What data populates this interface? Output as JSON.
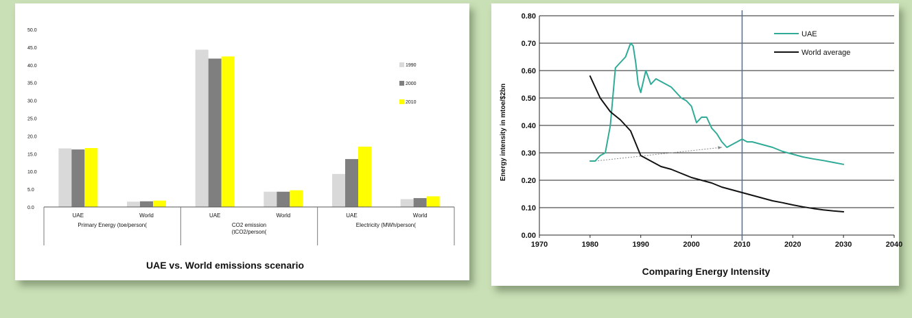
{
  "chart_data": [
    {
      "type": "bar",
      "title": "UAE vs. World emissions scenario",
      "group_labels": [
        "Primary Energy (toe/person(",
        "CO2 emission (tCO2/person(",
        "Electricity (MWh/person("
      ],
      "categories": [
        "UAE",
        "World",
        "UAE",
        "World",
        "UAE",
        "World"
      ],
      "series": [
        {
          "name": "1990",
          "color": "#d9d9d9",
          "values": [
            16.5,
            1.5,
            44.3,
            4.3,
            9.3,
            2.2
          ]
        },
        {
          "name": "2000",
          "color": "#7f7f7f",
          "values": [
            16.2,
            1.6,
            41.8,
            4.3,
            13.5,
            2.5
          ]
        },
        {
          "name": "2010",
          "color": "#ffff00",
          "values": [
            16.6,
            1.8,
            42.4,
            4.7,
            17.0,
            3.0
          ]
        }
      ],
      "ylim": [
        0,
        50
      ],
      "yticks": [
        "0.0",
        "5.0",
        "10.0",
        "15.0",
        "20.0",
        "25.0",
        "30.0",
        "35.0",
        "40.0",
        "45.0",
        "50.0"
      ],
      "legend_position": "right"
    },
    {
      "type": "line",
      "title": "Comparing Energy Intensity",
      "ylabel": "Energy intensity in mtoe/$2bn",
      "xlim": [
        1970,
        2040
      ],
      "ylim": [
        0,
        0.8
      ],
      "xticks": [
        "1970",
        "1980",
        "1990",
        "2000",
        "2010",
        "2020",
        "2030",
        "2040"
      ],
      "yticks": [
        "0.00",
        "0.10",
        "0.20",
        "0.30",
        "0.40",
        "0.50",
        "0.60",
        "0.70",
        "0.80"
      ],
      "reference_line_x": 2010,
      "series": [
        {
          "name": "UAE",
          "color": "#2eaa97",
          "x": [
            1980,
            1981,
            1982,
            1983,
            1984,
            1985,
            1986,
            1987,
            1988,
            1988.5,
            1989,
            1989.5,
            1990,
            1991,
            1992,
            1993,
            1994,
            1995,
            1996,
            1997,
            1998,
            1999,
            2000,
            2001,
            2002,
            2003,
            2004,
            2005,
            2006,
            2007,
            2008,
            2009,
            2010,
            2011,
            2012,
            2013,
            2014,
            2016,
            2018,
            2020,
            2022,
            2024,
            2026,
            2028,
            2030
          ],
          "y": [
            0.27,
            0.27,
            0.29,
            0.3,
            0.4,
            0.61,
            0.63,
            0.65,
            0.7,
            0.69,
            0.63,
            0.55,
            0.52,
            0.6,
            0.55,
            0.57,
            0.56,
            0.55,
            0.54,
            0.52,
            0.5,
            0.49,
            0.47,
            0.41,
            0.43,
            0.43,
            0.39,
            0.37,
            0.34,
            0.32,
            0.33,
            0.34,
            0.35,
            0.34,
            0.34,
            0.335,
            0.33,
            0.32,
            0.305,
            0.295,
            0.285,
            0.278,
            0.272,
            0.265,
            0.258
          ]
        },
        {
          "name": "World average",
          "color": "#111111",
          "x": [
            1980,
            1982,
            1984,
            1986,
            1988,
            1990,
            1992,
            1994,
            1996,
            1998,
            2000,
            2002,
            2004,
            2006,
            2008,
            2010,
            2012,
            2014,
            2016,
            2018,
            2020,
            2022,
            2024,
            2026,
            2028,
            2030
          ],
          "y": [
            0.58,
            0.5,
            0.45,
            0.42,
            0.38,
            0.29,
            0.27,
            0.25,
            0.24,
            0.225,
            0.21,
            0.2,
            0.19,
            0.175,
            0.165,
            0.155,
            0.145,
            0.135,
            0.125,
            0.118,
            0.11,
            0.103,
            0.097,
            0.092,
            0.088,
            0.085
          ]
        }
      ],
      "trend_arrow": {
        "from": [
          1981,
          0.27
        ],
        "to": [
          2006,
          0.32
        ]
      },
      "legend_position": "top-right"
    }
  ]
}
